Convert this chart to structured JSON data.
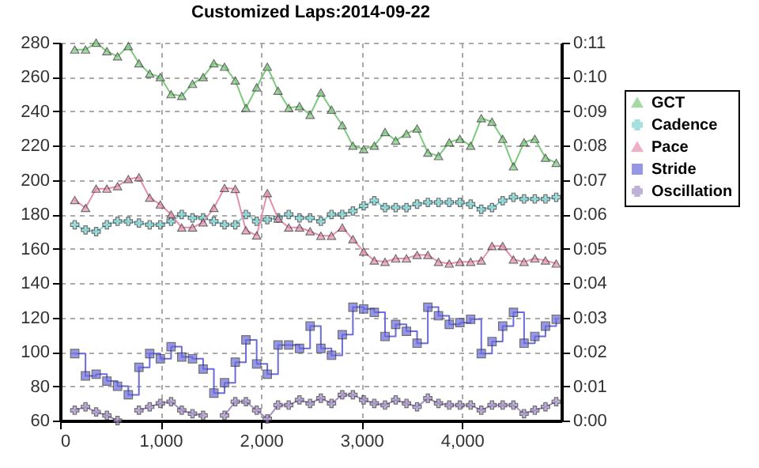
{
  "chart_data": {
    "type": "line",
    "title": "Customized Laps:2014-09-22",
    "x": [
      146,
      253,
      359,
      466,
      572,
      679,
      785,
      892,
      998,
      1105,
      1211,
      1318,
      1424,
      1531,
      1637,
      1744,
      1850,
      1957,
      2063,
      2170,
      2276,
      2383,
      2489,
      2596,
      2702,
      2809,
      2915,
      3022,
      3128,
      3235,
      3341,
      3448,
      3554,
      3661,
      3767,
      3874,
      3980,
      4087,
      4193,
      4300,
      4406,
      4513,
      4619,
      4726,
      4832,
      4939
    ],
    "series": [
      {
        "name": "GCT",
        "color": "#7fc97f",
        "marker": "triangle",
        "values": [
          276,
          276,
          280,
          275,
          272,
          278,
          268,
          262,
          260,
          250,
          249,
          256,
          260,
          268,
          266,
          258,
          242,
          254,
          266,
          252,
          242,
          243,
          238,
          251,
          241,
          232,
          220,
          218,
          220,
          228,
          223,
          227,
          230,
          216,
          214,
          222,
          224,
          220,
          236,
          234,
          224,
          208,
          222,
          224,
          213,
          210
        ]
      },
      {
        "name": "Cadence",
        "color": "#7fd3d3",
        "marker": "cross",
        "values": [
          174,
          171,
          170,
          174,
          176,
          176,
          175,
          174,
          174,
          176,
          180,
          178,
          178,
          176,
          174,
          174,
          180,
          176,
          177,
          178,
          180,
          178,
          178,
          176,
          180,
          180,
          182,
          185,
          188,
          184,
          184,
          184,
          186,
          187,
          187,
          187,
          187,
          186,
          183,
          184,
          188,
          190,
          189,
          189,
          189,
          190
        ]
      },
      {
        "name": "Pace",
        "color": "#e58fb0",
        "marker": "triangle",
        "axis": "y2",
        "values": [
          6.42,
          6.19,
          6.75,
          6.75,
          6.82,
          7.03,
          7.08,
          6.49,
          6.29,
          6.0,
          5.62,
          5.62,
          5.77,
          6.19,
          6.77,
          6.74,
          5.54,
          5.39,
          6.62,
          5.88,
          5.62,
          5.62,
          5.51,
          5.38,
          5.38,
          5.62,
          5.28,
          4.92,
          4.66,
          4.62,
          4.72,
          4.72,
          4.82,
          4.82,
          4.62,
          4.57,
          4.62,
          4.62,
          4.66,
          5.08,
          5.08,
          4.69,
          4.62,
          4.72,
          4.66,
          4.57
        ]
      },
      {
        "name": "Stride",
        "color": "#6b6bdc",
        "marker": "square",
        "type": "step",
        "values": [
          99,
          86,
          87,
          83,
          80,
          75,
          91,
          99,
          96,
          103,
          97,
          96,
          90,
          76,
          82,
          94,
          107,
          93,
          87,
          104,
          104,
          102,
          115,
          102,
          98,
          110,
          126,
          125,
          123,
          109,
          116,
          112,
          105,
          126,
          121,
          116,
          117,
          119,
          99,
          106,
          115,
          123,
          105,
          109,
          115,
          119
        ]
      },
      {
        "name": "Oscillation",
        "color": "#a58fc8",
        "marker": "cross",
        "values": [
          66,
          68,
          65,
          63,
          60,
          null,
          66,
          68,
          70,
          71,
          66,
          64,
          63,
          null,
          63,
          71,
          71,
          66,
          61,
          69,
          69,
          72,
          70,
          73,
          70,
          75,
          75,
          72,
          70,
          69,
          72,
          70,
          68,
          73,
          70,
          69,
          69,
          69,
          66,
          69,
          69,
          69,
          64,
          66,
          68,
          71
        ]
      }
    ],
    "xlim": [
      0,
      4990
    ],
    "xticks": [
      {
        "value": 0,
        "label": "0"
      },
      {
        "value": 1000,
        "label": "1,000"
      },
      {
        "value": 2000,
        "label": "2,000"
      },
      {
        "value": 3000,
        "label": "3,000"
      },
      {
        "value": 4000,
        "label": "4,000"
      }
    ],
    "ylim": [
      60,
      280
    ],
    "yticks": [
      60,
      80,
      100,
      120,
      140,
      160,
      180,
      200,
      220,
      240,
      260,
      280
    ],
    "y2lim": [
      0,
      11
    ],
    "y2ticks": [
      {
        "value": 0,
        "label": "0:00"
      },
      {
        "value": 1,
        "label": "0:01"
      },
      {
        "value": 2,
        "label": "0:02"
      },
      {
        "value": 3,
        "label": "0:03"
      },
      {
        "value": 4,
        "label": "0:04"
      },
      {
        "value": 5,
        "label": "0:05"
      },
      {
        "value": 6,
        "label": "0:06"
      },
      {
        "value": 7,
        "label": "0:07"
      },
      {
        "value": 8,
        "label": "0:08"
      },
      {
        "value": 9,
        "label": "0:09"
      },
      {
        "value": 10,
        "label": "0:10"
      },
      {
        "value": 11,
        "label": "0:11"
      }
    ],
    "grid": true,
    "legend": "top right"
  }
}
